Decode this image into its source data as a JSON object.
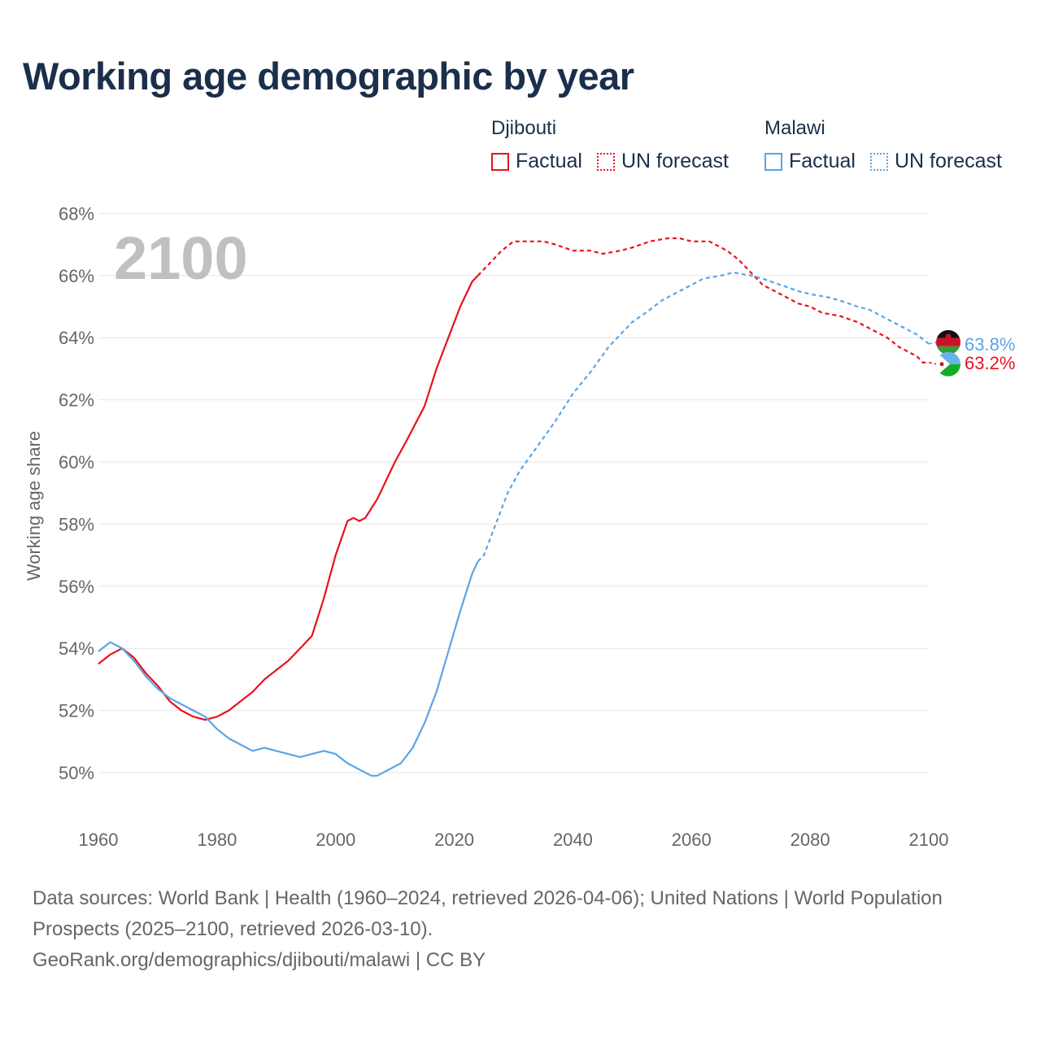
{
  "title": "Working age demographic by year",
  "legend": {
    "groups": [
      {
        "name": "Djibouti",
        "factual_label": "Factual",
        "forecast_label": "UN forecast",
        "color": "#e8121b"
      },
      {
        "name": "Malawi",
        "factual_label": "Factual",
        "forecast_label": "UN forecast",
        "color": "#5ba4e6"
      }
    ]
  },
  "footer": {
    "line1": "Data sources: World Bank | Health (1960–2024, retrieved 2026-04-06); United Nations | World Population Prospects (2025–2100, retrieved 2026-03-10).",
    "line2": "GeoRank.org/demographics/djibouti/malawi | CC BY"
  },
  "chart_data": {
    "type": "line",
    "title": "Working age demographic by year",
    "xlabel": "",
    "ylabel": "Working age share",
    "xlim": [
      1960,
      2100
    ],
    "ylim": [
      49,
      68
    ],
    "x_ticks": [
      1960,
      1980,
      2000,
      2020,
      2040,
      2060,
      2080,
      2100
    ],
    "y_ticks": [
      50,
      52,
      54,
      56,
      58,
      60,
      62,
      64,
      66,
      68
    ],
    "y_tick_labels": [
      "50%",
      "52%",
      "54%",
      "56%",
      "58%",
      "60%",
      "62%",
      "64%",
      "66%",
      "68%"
    ],
    "grid": true,
    "year_overlay": "2100",
    "forecast_start_year": 2024,
    "series": [
      {
        "name": "Djibouti",
        "color": "#e8121b",
        "end_label": "63.2%",
        "points": [
          [
            1960,
            53.5
          ],
          [
            1962,
            53.8
          ],
          [
            1964,
            54.0
          ],
          [
            1966,
            53.7
          ],
          [
            1968,
            53.2
          ],
          [
            1970,
            52.8
          ],
          [
            1972,
            52.3
          ],
          [
            1974,
            52.0
          ],
          [
            1976,
            51.8
          ],
          [
            1978,
            51.7
          ],
          [
            1980,
            51.8
          ],
          [
            1982,
            52.0
          ],
          [
            1984,
            52.3
          ],
          [
            1986,
            52.6
          ],
          [
            1988,
            53.0
          ],
          [
            1990,
            53.3
          ],
          [
            1992,
            53.6
          ],
          [
            1994,
            54.0
          ],
          [
            1996,
            54.4
          ],
          [
            1998,
            55.6
          ],
          [
            2000,
            57.0
          ],
          [
            2002,
            58.1
          ],
          [
            2003,
            58.2
          ],
          [
            2004,
            58.1
          ],
          [
            2005,
            58.2
          ],
          [
            2007,
            58.8
          ],
          [
            2010,
            60.0
          ],
          [
            2012,
            60.7
          ],
          [
            2015,
            61.8
          ],
          [
            2017,
            63.0
          ],
          [
            2019,
            64.0
          ],
          [
            2021,
            65.0
          ],
          [
            2023,
            65.8
          ],
          [
            2024,
            66.0
          ],
          [
            2026,
            66.4
          ],
          [
            2028,
            66.8
          ],
          [
            2030,
            67.1
          ],
          [
            2032,
            67.1
          ],
          [
            2035,
            67.1
          ],
          [
            2037,
            67.0
          ],
          [
            2040,
            66.8
          ],
          [
            2043,
            66.8
          ],
          [
            2045,
            66.7
          ],
          [
            2048,
            66.8
          ],
          [
            2050,
            66.9
          ],
          [
            2053,
            67.1
          ],
          [
            2056,
            67.2
          ],
          [
            2058,
            67.2
          ],
          [
            2060,
            67.1
          ],
          [
            2063,
            67.1
          ],
          [
            2066,
            66.8
          ],
          [
            2068,
            66.5
          ],
          [
            2070,
            66.1
          ],
          [
            2072,
            65.7
          ],
          [
            2075,
            65.4
          ],
          [
            2078,
            65.1
          ],
          [
            2080,
            65.0
          ],
          [
            2082,
            64.8
          ],
          [
            2085,
            64.7
          ],
          [
            2088,
            64.5
          ],
          [
            2090,
            64.3
          ],
          [
            2093,
            64.0
          ],
          [
            2095,
            63.7
          ],
          [
            2098,
            63.4
          ],
          [
            2099,
            63.2
          ],
          [
            2100,
            63.2
          ]
        ]
      },
      {
        "name": "Malawi",
        "color": "#5ba4e6",
        "end_label": "63.8%",
        "points": [
          [
            1960,
            53.9
          ],
          [
            1962,
            54.2
          ],
          [
            1964,
            54.0
          ],
          [
            1966,
            53.6
          ],
          [
            1968,
            53.1
          ],
          [
            1970,
            52.7
          ],
          [
            1972,
            52.4
          ],
          [
            1974,
            52.2
          ],
          [
            1976,
            52.0
          ],
          [
            1978,
            51.8
          ],
          [
            1980,
            51.4
          ],
          [
            1982,
            51.1
          ],
          [
            1984,
            50.9
          ],
          [
            1986,
            50.7
          ],
          [
            1988,
            50.8
          ],
          [
            1990,
            50.7
          ],
          [
            1992,
            50.6
          ],
          [
            1994,
            50.5
          ],
          [
            1996,
            50.6
          ],
          [
            1998,
            50.7
          ],
          [
            2000,
            50.6
          ],
          [
            2002,
            50.3
          ],
          [
            2004,
            50.1
          ],
          [
            2006,
            49.9
          ],
          [
            2007,
            49.9
          ],
          [
            2009,
            50.1
          ],
          [
            2011,
            50.3
          ],
          [
            2013,
            50.8
          ],
          [
            2015,
            51.6
          ],
          [
            2017,
            52.6
          ],
          [
            2019,
            53.9
          ],
          [
            2021,
            55.2
          ],
          [
            2023,
            56.4
          ],
          [
            2024,
            56.8
          ],
          [
            2025,
            57.0
          ],
          [
            2027,
            58.0
          ],
          [
            2029,
            59.0
          ],
          [
            2031,
            59.7
          ],
          [
            2034,
            60.5
          ],
          [
            2037,
            61.3
          ],
          [
            2040,
            62.2
          ],
          [
            2043,
            62.9
          ],
          [
            2046,
            63.7
          ],
          [
            2048,
            64.1
          ],
          [
            2050,
            64.5
          ],
          [
            2053,
            64.9
          ],
          [
            2055,
            65.2
          ],
          [
            2058,
            65.5
          ],
          [
            2060,
            65.7
          ],
          [
            2062,
            65.9
          ],
          [
            2065,
            66.0
          ],
          [
            2067,
            66.1
          ],
          [
            2070,
            66.0
          ],
          [
            2072,
            65.9
          ],
          [
            2075,
            65.7
          ],
          [
            2078,
            65.5
          ],
          [
            2080,
            65.4
          ],
          [
            2083,
            65.3
          ],
          [
            2085,
            65.2
          ],
          [
            2088,
            65.0
          ],
          [
            2090,
            64.9
          ],
          [
            2093,
            64.6
          ],
          [
            2095,
            64.4
          ],
          [
            2098,
            64.1
          ],
          [
            2100,
            63.8
          ]
        ]
      }
    ]
  }
}
